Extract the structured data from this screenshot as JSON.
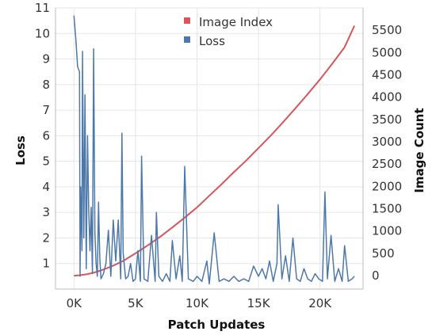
{
  "chart_data": {
    "type": "line",
    "x_label": "Patch Updates",
    "y_label_left": "Loss",
    "y_label_right": "Image Count",
    "x_range": [
      -1500,
      23500
    ],
    "x_ticks": [
      {
        "value": 0,
        "label": "0K"
      },
      {
        "value": 5000,
        "label": "5K"
      },
      {
        "value": 10000,
        "label": "10K"
      },
      {
        "value": 15000,
        "label": "15K"
      },
      {
        "value": 20000,
        "label": "20K"
      }
    ],
    "y_left_range": [
      0,
      11
    ],
    "y_left_ticks": [
      1,
      2,
      3,
      4,
      5,
      6,
      7,
      8,
      9,
      10,
      11
    ],
    "y_right_range": [
      -300,
      6000
    ],
    "y_right_ticks": [
      0,
      500,
      1000,
      1500,
      2000,
      2500,
      3000,
      3500,
      4000,
      4500,
      5000,
      5500
    ],
    "grid": true,
    "legend_position": "top",
    "series": [
      {
        "name": "Image Index",
        "axis": "right",
        "color": "#d6565a",
        "x": [
          0,
          500,
          1000,
          1500,
          2000,
          3000,
          4000,
          5000,
          6000,
          7000,
          8000,
          9000,
          10000,
          11000,
          12000,
          13000,
          14000,
          15000,
          16000,
          17000,
          18000,
          19000,
          20000,
          21000,
          22000,
          22800
        ],
        "y": [
          0,
          10,
          30,
          60,
          100,
          200,
          330,
          500,
          680,
          870,
          1080,
          1300,
          1530,
          1790,
          2050,
          2320,
          2580,
          2860,
          3140,
          3440,
          3750,
          4070,
          4400,
          4750,
          5120,
          5600
        ]
      },
      {
        "name": "Loss",
        "axis": "left",
        "color": "#4e78a8",
        "x": [
          0,
          150,
          300,
          450,
          500,
          550,
          650,
          700,
          800,
          900,
          1000,
          1100,
          1200,
          1300,
          1400,
          1500,
          1600,
          1700,
          1800,
          1900,
          2000,
          2100,
          2200,
          2400,
          2600,
          2800,
          3000,
          3200,
          3400,
          3600,
          3800,
          3900,
          4000,
          4200,
          4400,
          4600,
          4800,
          5000,
          5200,
          5400,
          5500,
          5700,
          6000,
          6300,
          6600,
          6700,
          6900,
          7200,
          7500,
          7800,
          8000,
          8300,
          8600,
          8800,
          9000,
          9300,
          9700,
          10000,
          10400,
          10800,
          11000,
          11400,
          11800,
          12200,
          12600,
          13000,
          13400,
          13800,
          14200,
          14600,
          15000,
          15300,
          15600,
          15900,
          16200,
          16500,
          16600,
          16900,
          17200,
          17500,
          17800,
          18100,
          18400,
          18700,
          19000,
          19300,
          19600,
          19900,
          20200,
          20400,
          20600,
          20900,
          21200,
          21500,
          21800,
          22000,
          22300,
          22600,
          22800
        ],
        "y": [
          10.7,
          9.8,
          8.7,
          8.5,
          0.5,
          4.0,
          1.5,
          9.3,
          2.0,
          7.6,
          0.8,
          6.0,
          3.1,
          1.5,
          3.2,
          0.6,
          9.4,
          2.2,
          1.0,
          0.5,
          3.4,
          1.2,
          0.4,
          0.6,
          1.0,
          2.3,
          0.5,
          2.7,
          1.1,
          2.7,
          0.4,
          6.1,
          1.4,
          0.4,
          0.5,
          1.0,
          0.3,
          0.4,
          1.5,
          0.3,
          5.2,
          0.4,
          0.3,
          2.1,
          0.3,
          3.0,
          0.5,
          0.3,
          0.6,
          0.3,
          1.9,
          0.4,
          1.3,
          0.3,
          4.8,
          0.4,
          0.3,
          0.5,
          0.3,
          1.1,
          0.2,
          2.2,
          0.3,
          0.4,
          0.3,
          0.5,
          0.3,
          0.4,
          0.3,
          0.9,
          0.5,
          0.8,
          0.4,
          1.1,
          0.3,
          1.0,
          3.3,
          0.4,
          1.3,
          0.3,
          2.0,
          0.4,
          0.3,
          0.8,
          0.4,
          0.3,
          0.6,
          0.4,
          0.3,
          3.8,
          0.4,
          2.1,
          0.3,
          0.8,
          0.3,
          1.7,
          0.3,
          0.4,
          0.5
        ]
      }
    ]
  }
}
